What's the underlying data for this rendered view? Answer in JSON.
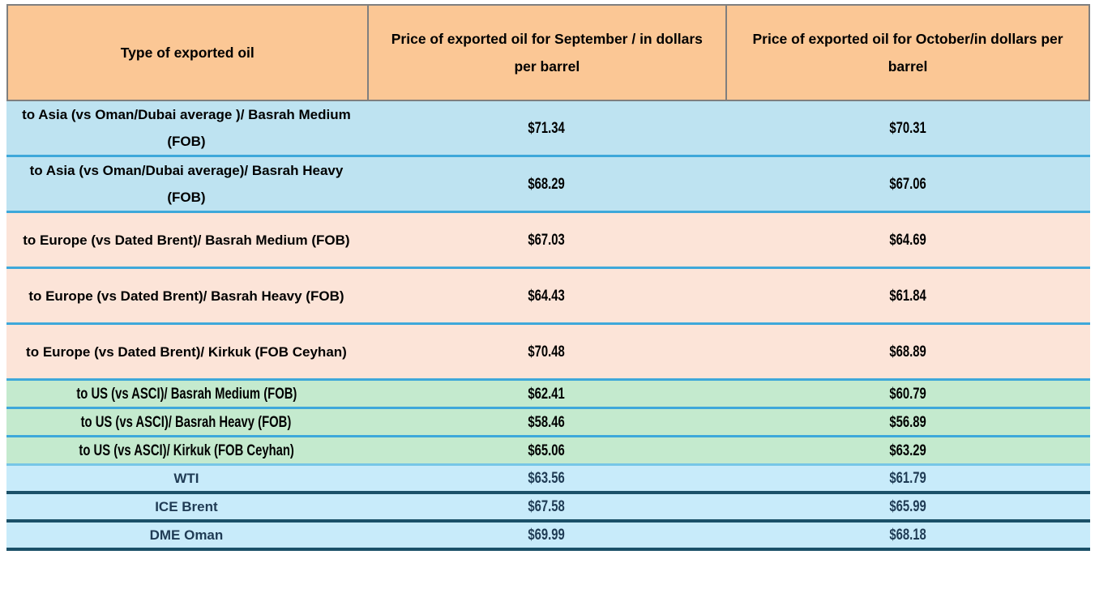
{
  "chart_data": {
    "type": "table",
    "columns": [
      "Type of exported oil",
      "Price of exported oil for September / in dollars per barrel",
      "Price of exported oil for October/in dollars per barrel"
    ],
    "rows": [
      {
        "type": "to Asia (vs Oman/Dubai average )/ Basrah Medium (FOB)",
        "september": "$71.34",
        "october": "$70.31",
        "group": "asia"
      },
      {
        "type": "to Asia (vs Oman/Dubai average)/ Basrah Heavy (FOB)",
        "september": "$68.29",
        "october": "$67.06",
        "group": "asia"
      },
      {
        "type": "to Europe (vs Dated Brent)/ Basrah Medium (FOB)",
        "september": "$67.03",
        "october": "$64.69",
        "group": "europe"
      },
      {
        "type": "to Europe (vs Dated Brent)/ Basrah Heavy (FOB)",
        "september": "$64.43",
        "october": "$61.84",
        "group": "europe"
      },
      {
        "type": "to Europe (vs Dated Brent)/ Kirkuk (FOB Ceyhan)",
        "september": "$70.48",
        "october": "$68.89",
        "group": "europe"
      },
      {
        "type": "to US (vs ASCI)/ Basrah Medium (FOB)",
        "september": "$62.41",
        "october": "$60.79",
        "group": "us"
      },
      {
        "type": "to US (vs ASCI)/ Basrah Heavy (FOB)",
        "september": "$58.46",
        "october": "$56.89",
        "group": "us"
      },
      {
        "type": "to US (vs ASCI)/ Kirkuk (FOB Ceyhan)",
        "september": "$65.06",
        "october": "$63.29",
        "group": "us"
      },
      {
        "type": "WTI",
        "september": "$63.56",
        "october": "$61.79",
        "group": "benchmark"
      },
      {
        "type": "ICE Brent",
        "september": "$67.58",
        "october": "$65.99",
        "group": "benchmark"
      },
      {
        "type": "DME Oman",
        "september": "$69.99",
        "october": "$68.18",
        "group": "benchmark"
      }
    ]
  },
  "colors": {
    "header_bg": "#FBC795",
    "header_border": "#7F7F7F",
    "asia_row_bg": "#BEE3F1",
    "europe_row_bg": "#FCE4D8",
    "us_row_bg": "#C4EACE",
    "benchmark_row_bg": "#C8EBFA",
    "divider_blue": "#3EA8DA",
    "divider_light_blue": "#77C6E6",
    "divider_navy": "#1B5068",
    "benchmark_text": "#1F3B54",
    "body_text": "#000000"
  }
}
